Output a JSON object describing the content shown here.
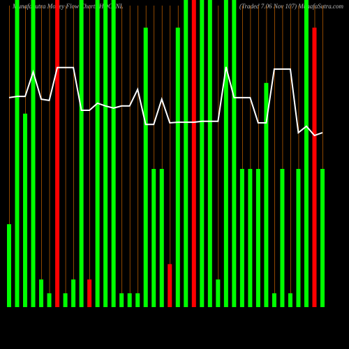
{
  "chart_data": {
    "type": "bar",
    "title": "MunafaSutra  Money Flow Charts HDC_NL",
    "subtitle": "(Traded 7.06 Nov 107) MunafaSutra.com",
    "categories": [
      null,
      null,
      null,
      null,
      null,
      null,
      null,
      null,
      null,
      null,
      null,
      null,
      null,
      null,
      null,
      null,
      null,
      null,
      null,
      null,
      null,
      null,
      null,
      null,
      null,
      null,
      null,
      null,
      null,
      null,
      null,
      null,
      null,
      null,
      null,
      null,
      null,
      null,
      null,
      null
    ],
    "ylim": [
      0,
      100
    ],
    "series": [
      {
        "name": "Money Flow",
        "values": [
          27,
          100,
          63,
          100,
          9,
          4.5,
          100,
          4.5,
          9,
          100,
          9,
          100,
          100,
          100,
          4.5,
          4.5,
          4.5,
          91,
          45,
          45,
          14,
          91,
          100,
          100,
          100,
          100,
          9,
          100,
          100,
          45,
          45,
          45,
          73,
          4.5,
          45,
          4.5,
          45,
          100,
          91,
          45
        ],
        "colors": [
          "#00ff00",
          "#00ff00",
          "#00ff00",
          "#00ff00",
          "#00ff00",
          "#00ff00",
          "#ff0000",
          "#00ff00",
          "#00ff00",
          "#00ff00",
          "#ff0000",
          "#00ff00",
          "#00ff00",
          "#00ff00",
          "#00ff00",
          "#00ff00",
          "#00ff00",
          "#00ff00",
          "#00ff00",
          "#00ff00",
          "#ff0000",
          "#00ff00",
          "#00ff00",
          "#ff0000",
          "#00ff00",
          "#00ff00",
          "#00ff00",
          "#00ff00",
          "#00ff00",
          "#00ff00",
          "#00ff00",
          "#00ff00",
          "#00ff00",
          "#00ff00",
          "#00ff00",
          "#00ff00",
          "#00ff00",
          "#00ff00",
          "#ff0000",
          "#00ff00"
        ]
      },
      {
        "name": "Price",
        "color": "#ffffff",
        "values": [
          68.2,
          68.6,
          68.6,
          76.6,
          67.7,
          67.3,
          78,
          78,
          78,
          64.1,
          64.1,
          66.4,
          65.5,
          64.8,
          65.5,
          65.5,
          70.9,
          59.5,
          59.5,
          67.7,
          60,
          60.2,
          60.2,
          60.2,
          60.5,
          60.5,
          60.5,
          78.2,
          68.2,
          68.2,
          68.2,
          60,
          60,
          77.5,
          77.5,
          77.5,
          56.8,
          58.9,
          55.9,
          56.8
        ]
      }
    ],
    "grid_color": "#cc6600"
  }
}
